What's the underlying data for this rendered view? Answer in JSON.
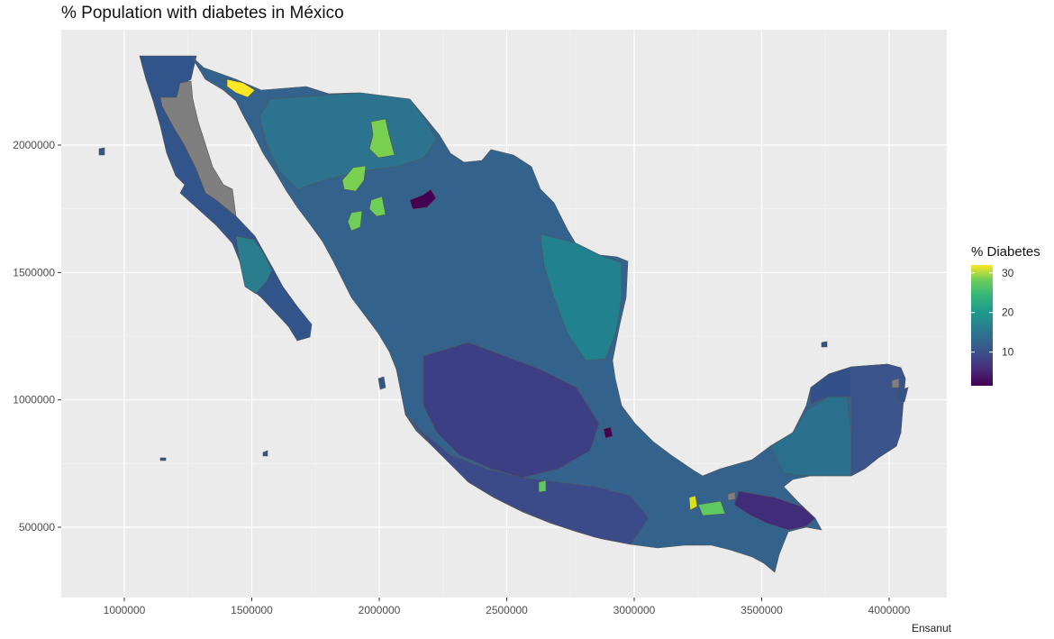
{
  "title": "% Population with diabetes in México",
  "caption": "Ensanut",
  "colors": {
    "panel": "#ebebeb",
    "grid_major": "#ffffff",
    "missing": "#7f7f7f",
    "border": "#555555",
    "viridis_low": "#440154",
    "viridis_mid": "#21908c",
    "viridis_high": "#fde725"
  },
  "legend": {
    "title": "% Diabetes",
    "ticks": [
      30,
      20,
      10
    ],
    "range": [
      1.5,
      32
    ]
  },
  "axes": {
    "x": {
      "ticks": [
        "1000000",
        "1500000",
        "2000000",
        "2500000",
        "3000000",
        "3500000",
        "4000000"
      ]
    },
    "y": {
      "ticks": [
        "2000000",
        "1500000",
        "1000000",
        "500000"
      ]
    }
  },
  "map_data": {
    "type": "choropleth",
    "variable": "% Diabetes",
    "typical_range": [
      8,
      16
    ],
    "notable_regions": [
      {
        "value": 32
      },
      {
        "value": 22
      },
      {
        "value": 22
      },
      {
        "value": 21
      },
      {
        "value": 21
      },
      {
        "value": 21
      },
      {
        "value": 2
      },
      {
        "value": 2
      }
    ]
  }
}
